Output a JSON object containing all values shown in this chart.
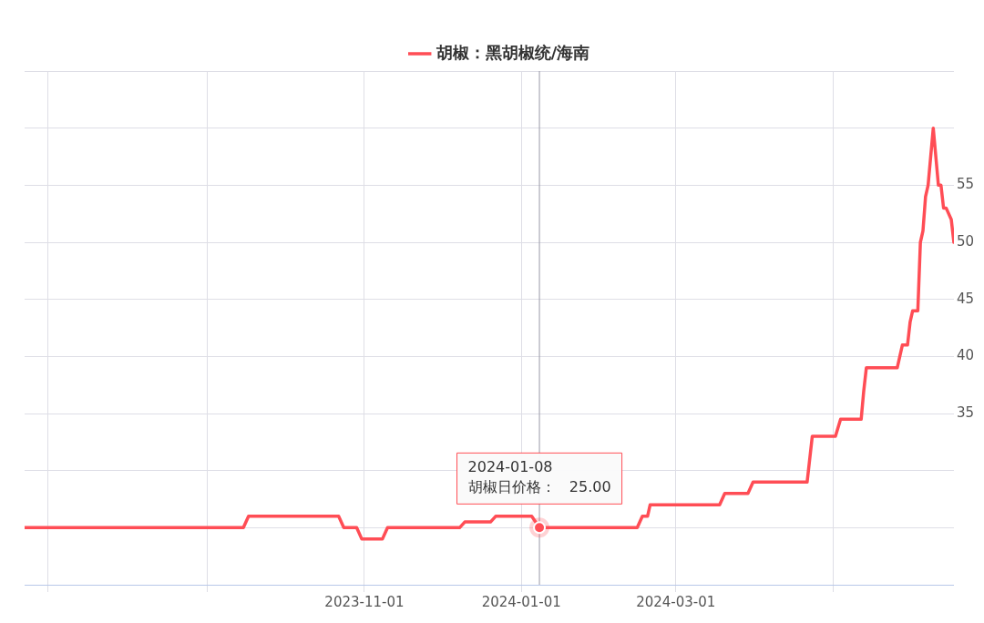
{
  "chart_data": {
    "type": "line",
    "legend": "top",
    "grid": true,
    "marker": "none",
    "line_style": "solid",
    "xlim": [
      "2023-06-22",
      "2024-06-17"
    ],
    "xticks": [
      {
        "value": "2023-07-01",
        "label": null
      },
      {
        "value": "2023-09-01",
        "label": null
      },
      "2023-11-01",
      "2024-01-01",
      "2024-03-01",
      {
        "value": "2024-05-01",
        "label": null
      }
    ],
    "ylim": [
      20,
      65
    ],
    "yticks": [
      {
        "value": 20,
        "label": null
      },
      {
        "value": 25,
        "label": null
      },
      {
        "value": 30,
        "label": null
      },
      35,
      40,
      45,
      50,
      55,
      {
        "value": 60,
        "label": null
      },
      {
        "value": 65,
        "label": null
      }
    ],
    "series": [
      {
        "name": "胡椒：黑胡椒统/海南",
        "color": "#ff4d55",
        "x": [
          "2023-06-22",
          "2023-09-15",
          "2023-09-17",
          "2023-10-22",
          "2023-10-24",
          "2023-10-29",
          "2023-10-31",
          "2023-11-08",
          "2023-11-10",
          "2023-12-08",
          "2023-12-10",
          "2023-12-20",
          "2023-12-22",
          "2024-01-05",
          "2024-01-08",
          "2024-02-15",
          "2024-02-17",
          "2024-02-19",
          "2024-02-20",
          "2024-03-18",
          "2024-03-20",
          "2024-03-29",
          "2024-03-31",
          "2024-04-21",
          "2024-04-23",
          "2024-05-02",
          "2024-05-04",
          "2024-05-12",
          "2024-05-13",
          "2024-05-14",
          "2024-05-26",
          "2024-05-28",
          "2024-05-30",
          "2024-05-31",
          "2024-06-01",
          "2024-06-03",
          "2024-06-04",
          "2024-06-05",
          "2024-06-06",
          "2024-06-07",
          "2024-06-09",
          "2024-06-11",
          "2024-06-12",
          "2024-06-13",
          "2024-06-14",
          "2024-06-16",
          "2024-06-17"
        ],
        "values": [
          25,
          25,
          26,
          26,
          25,
          25,
          24,
          24,
          25,
          25,
          25.5,
          25.5,
          26,
          26,
          25,
          25,
          26,
          26,
          27,
          27,
          28,
          28,
          29,
          29,
          33,
          33,
          34.5,
          34.5,
          37,
          39,
          39,
          41,
          41,
          43,
          44,
          44,
          50,
          51,
          54,
          55,
          60,
          55,
          55,
          53,
          53,
          52,
          50
        ]
      }
    ],
    "ref_lines": [
      {
        "axis": "x",
        "value": "2024-01-08",
        "color": "#9a9aa8"
      }
    ],
    "annotations": [
      {
        "text": "2024-01-08\n胡椒日价格：   25.00",
        "x": "2024-01-08",
        "y": 25
      }
    ]
  }
}
